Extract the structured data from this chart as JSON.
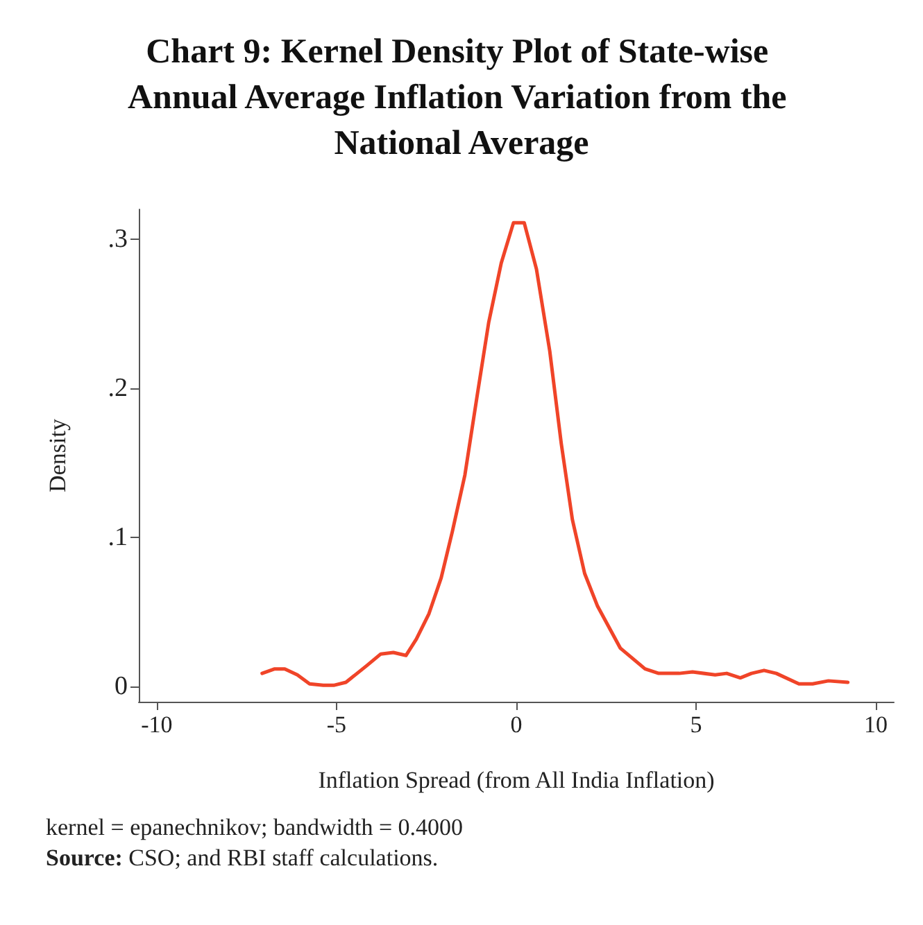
{
  "chart_data": {
    "type": "line",
    "title": "Chart 9: Kernel Density Plot of State-wise Annual Average Inflation Variation from the National Average",
    "xlabel": "Inflation Spread (from All India Inflation)",
    "ylabel": "Density",
    "annotations": [
      "kernel = epanechnikov; bandwidth = 0.4000",
      "Source: CSO; and RBI staff calculations."
    ],
    "x": [
      -7.07,
      -6.72,
      -6.44,
      -6.09,
      -5.75,
      -5.37,
      -5.08,
      -4.74,
      -4.17,
      -3.77,
      -3.42,
      -3.07,
      -2.78,
      -2.43,
      -2.09,
      -1.78,
      -1.43,
      -1.09,
      -0.77,
      -0.42,
      -0.08,
      0.22,
      0.56,
      0.93,
      1.25,
      1.56,
      1.9,
      2.26,
      2.89,
      3.58,
      3.96,
      4.53,
      4.9,
      5.53,
      5.85,
      6.23,
      6.54,
      6.89,
      7.23,
      7.86,
      8.24,
      8.68,
      9.22
    ],
    "series": [
      {
        "color": "#f04428",
        "values": [
          0.009,
          0.012,
          0.012,
          0.008,
          0.002,
          0.001,
          0.001,
          0.003,
          0.014,
          0.022,
          0.023,
          0.021,
          0.032,
          0.049,
          0.073,
          0.104,
          0.142,
          0.195,
          0.244,
          0.284,
          0.311,
          0.311,
          0.28,
          0.225,
          0.163,
          0.112,
          0.076,
          0.054,
          0.026,
          0.012,
          0.009,
          0.009,
          0.01,
          0.008,
          0.009,
          0.006,
          0.009,
          0.011,
          0.009,
          0.002,
          0.002,
          0.004,
          0.003
        ]
      }
    ],
    "xlim": [
      -10.5,
      10.5
    ],
    "xticks": [
      -10,
      -5,
      0,
      5,
      10
    ],
    "ylim": [
      -0.01,
      0.32
    ],
    "yticks": [
      {
        "value": 0,
        "label": "0"
      },
      {
        "value": 0.1,
        "label": ".1"
      },
      {
        "value": 0.2,
        "label": ".2"
      },
      {
        "value": 0.3,
        "label": ".3"
      }
    ],
    "grid": false,
    "marker": "none",
    "line_style": "solid"
  }
}
